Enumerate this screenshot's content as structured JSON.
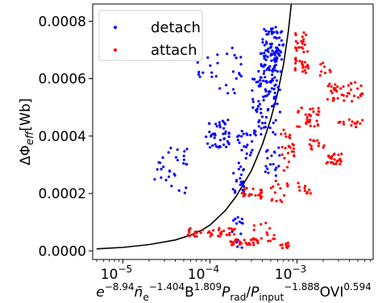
{
  "chart_data": {
    "type": "scatter",
    "title": "",
    "xscale": "log",
    "xlim": [
      4.5e-06,
      0.0075
    ],
    "ylim": [
      -3e-05,
      0.00086
    ],
    "x_ticks": [
      {
        "value": 1e-05,
        "base": "10",
        "exp": "−5"
      },
      {
        "value": 0.0001,
        "base": "10",
        "exp": "−4"
      },
      {
        "value": 0.001,
        "base": "10",
        "exp": "−3"
      }
    ],
    "y_ticks": [
      {
        "value": 0.0,
        "label": "0.0000"
      },
      {
        "value": 0.0002,
        "label": "0.0002"
      },
      {
        "value": 0.0004,
        "label": "0.0004"
      },
      {
        "value": 0.0006,
        "label": "0.0006"
      },
      {
        "value": 0.0008,
        "label": "0.0008"
      }
    ],
    "ylabel": {
      "main": "ΔΦ",
      "sub": "eff",
      "tail": "[Wb]"
    },
    "xlabel": [
      {
        "t": "e",
        "k": "i"
      },
      {
        "t": "−8.94",
        "k": "sup"
      },
      {
        "t": "n̄",
        "k": "i"
      },
      {
        "t": "e",
        "k": "sub"
      },
      {
        "t": "−1.404",
        "k": "sup"
      },
      {
        "t": "B",
        "k": "n"
      },
      {
        "t": "1.809",
        "k": "sup"
      },
      {
        "t": "P",
        "k": "i"
      },
      {
        "t": "rad",
        "k": "sub"
      },
      {
        "t": "/",
        "k": "n"
      },
      {
        "t": "P",
        "k": "i"
      },
      {
        "t": "input",
        "k": "sub"
      },
      {
        "t": "−1.888",
        "k": "sup"
      },
      {
        "t": "OVI",
        "k": "n"
      },
      {
        "t": "0.594",
        "k": "sup"
      }
    ],
    "legend": {
      "position": "upper-left"
    },
    "grid": false,
    "series": [
      {
        "name": "detach",
        "color": "#0000ff",
        "clusters": [
          {
            "x": [
              0.0004,
              0.0007
            ],
            "y": [
              0.00066,
              0.00078
            ],
            "n": 55
          },
          {
            "x": [
              0.00036,
              0.00068
            ],
            "y": [
              0.00059,
              0.0007
            ],
            "n": 50
          },
          {
            "x": [
              0.0003,
              0.00065
            ],
            "y": [
              0.00048,
              0.0006
            ],
            "n": 55
          },
          {
            "x": [
              0.00012,
              0.00023
            ],
            "y": [
              0.00054,
              0.00071
            ],
            "n": 18
          },
          {
            "x": [
              7e-05,
              0.00013
            ],
            "y": [
              0.0006,
              0.00068
            ],
            "n": 10
          },
          {
            "x": [
              0.00032,
              0.0006
            ],
            "y": [
              0.0004,
              0.00047
            ],
            "n": 20
          },
          {
            "x": [
              9e-05,
              0.00017
            ],
            "y": [
              0.00036,
              0.00046
            ],
            "n": 45
          },
          {
            "x": [
              0.0002,
              0.00032
            ],
            "y": [
              0.00032,
              0.00042
            ],
            "n": 20
          },
          {
            "x": [
              0.0004,
              0.00065
            ],
            "y": [
              0.00026,
              0.00036
            ],
            "n": 18
          },
          {
            "x": [
              2.3e-05,
              5.5e-05
            ],
            "y": [
              0.0002,
              0.00036
            ],
            "n": 30
          },
          {
            "x": [
              0.00018,
              0.00025
            ],
            "y": [
              0.0002,
              0.00031
            ],
            "n": 22
          },
          {
            "x": [
              0.00018,
              0.00024
            ],
            "y": [
              1e-05,
              0.00013
            ],
            "n": 15
          }
        ]
      },
      {
        "name": "attach",
        "color": "#ff0000",
        "clusters": [
          {
            "x": [
              0.00095,
              0.0014
            ],
            "y": [
              0.00062,
              0.00077
            ],
            "n": 40
          },
          {
            "x": [
              0.0018,
              0.0025
            ],
            "y": [
              0.00061,
              0.00066
            ],
            "n": 8
          },
          {
            "x": [
              0.0022,
              0.0058
            ],
            "y": [
              0.00052,
              0.00059
            ],
            "n": 40
          },
          {
            "x": [
              0.001,
              0.0018
            ],
            "y": [
              0.00043,
              0.0005
            ],
            "n": 30
          },
          {
            "x": [
              0.003,
              0.006
            ],
            "y": [
              0.00043,
              0.00046
            ],
            "n": 15
          },
          {
            "x": [
              0.00065,
              0.00095
            ],
            "y": [
              0.00028,
              0.00043
            ],
            "n": 25
          },
          {
            "x": [
              0.0014,
              0.0024
            ],
            "y": [
              0.00035,
              0.00039
            ],
            "n": 12
          },
          {
            "x": [
              0.002,
              0.0033
            ],
            "y": [
              0.0003,
              0.00034
            ],
            "n": 25
          },
          {
            "x": [
              0.00023,
              0.0004
            ],
            "y": [
              0.00018,
              0.00022
            ],
            "n": 20
          },
          {
            "x": [
              0.0005,
              0.0008
            ],
            "y": [
              0.00017,
              0.00025
            ],
            "n": 15
          },
          {
            "x": [
              0.001,
              0.0015
            ],
            "y": [
              0.0002,
              0.00024
            ],
            "n": 10
          },
          {
            "x": [
              5.5e-05,
              0.00021
            ],
            "y": [
              5e-05,
              8e-05
            ],
            "n": 40
          },
          {
            "x": [
              0.00016,
              0.00036
            ],
            "y": [
              2e-05,
              4e-05
            ],
            "n": 30
          },
          {
            "x": [
              0.0003,
              0.00055
            ],
            "y": [
              3e-05,
              0.0001
            ],
            "n": 15
          },
          {
            "x": [
              0.00055,
              0.00085
            ],
            "y": [
              1e-05,
              3e-05
            ],
            "n": 10
          }
        ]
      }
    ],
    "curve": {
      "color": "#000000",
      "points": [
        [
          5e-06,
          7e-06
        ],
        [
          1e-05,
          1.2e-05
        ],
        [
          2e-05,
          2.2e-05
        ],
        [
          4e-05,
          3.8e-05
        ],
        [
          6e-05,
          5.5e-05
        ],
        [
          8e-05,
          7.2e-05
        ],
        [
          0.0001,
          9e-05
        ],
        [
          0.00015,
          0.00014
        ],
        [
          0.0002,
          0.00019
        ],
        [
          0.0003,
          0.00028
        ],
        [
          0.0004,
          0.00037
        ],
        [
          0.0005,
          0.00046
        ],
        [
          0.0006,
          0.00055
        ],
        [
          0.0007,
          0.00065
        ],
        [
          0.0008,
          0.00077
        ],
        [
          0.00086,
          0.00086
        ]
      ]
    }
  }
}
